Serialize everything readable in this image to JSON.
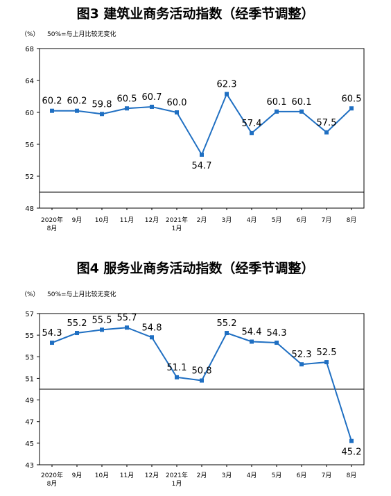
{
  "chart_data": [
    {
      "type": "line",
      "title": "图3  建筑业商务活动指数（经季节调整）",
      "ylabel": "（%）",
      "note": "50%=与上月比较无变化",
      "categories": [
        "2020年\n8月",
        "9月",
        "10月",
        "11月",
        "12月",
        "2021年\n1月",
        "2月",
        "3月",
        "4月",
        "5月",
        "6月",
        "7月",
        "8月"
      ],
      "values": [
        60.2,
        60.2,
        59.8,
        60.5,
        60.7,
        60.0,
        54.7,
        62.3,
        57.4,
        60.1,
        60.1,
        57.5,
        60.5
      ],
      "ylim": [
        48,
        68
      ],
      "yticks": [
        48,
        52,
        56,
        60,
        64,
        68
      ],
      "reference_line": 50,
      "grid": false,
      "color": "#1f6fc2"
    },
    {
      "type": "line",
      "title": "图4  服务业商务活动指数（经季节调整）",
      "ylabel": "（%）",
      "note": "50%=与上月比较无变化",
      "categories": [
        "2020年\n8月",
        "9月",
        "10月",
        "11月",
        "12月",
        "2021年\n1月",
        "2月",
        "3月",
        "4月",
        "5月",
        "6月",
        "7月",
        "8月"
      ],
      "values": [
        54.3,
        55.2,
        55.5,
        55.7,
        54.8,
        51.1,
        50.8,
        55.2,
        54.4,
        54.3,
        52.3,
        52.5,
        45.2
      ],
      "ylim": [
        43,
        57
      ],
      "yticks": [
        43,
        45,
        47,
        49,
        51,
        53,
        55,
        57
      ],
      "reference_line": 50,
      "grid": false,
      "color": "#1f6fc2"
    }
  ]
}
